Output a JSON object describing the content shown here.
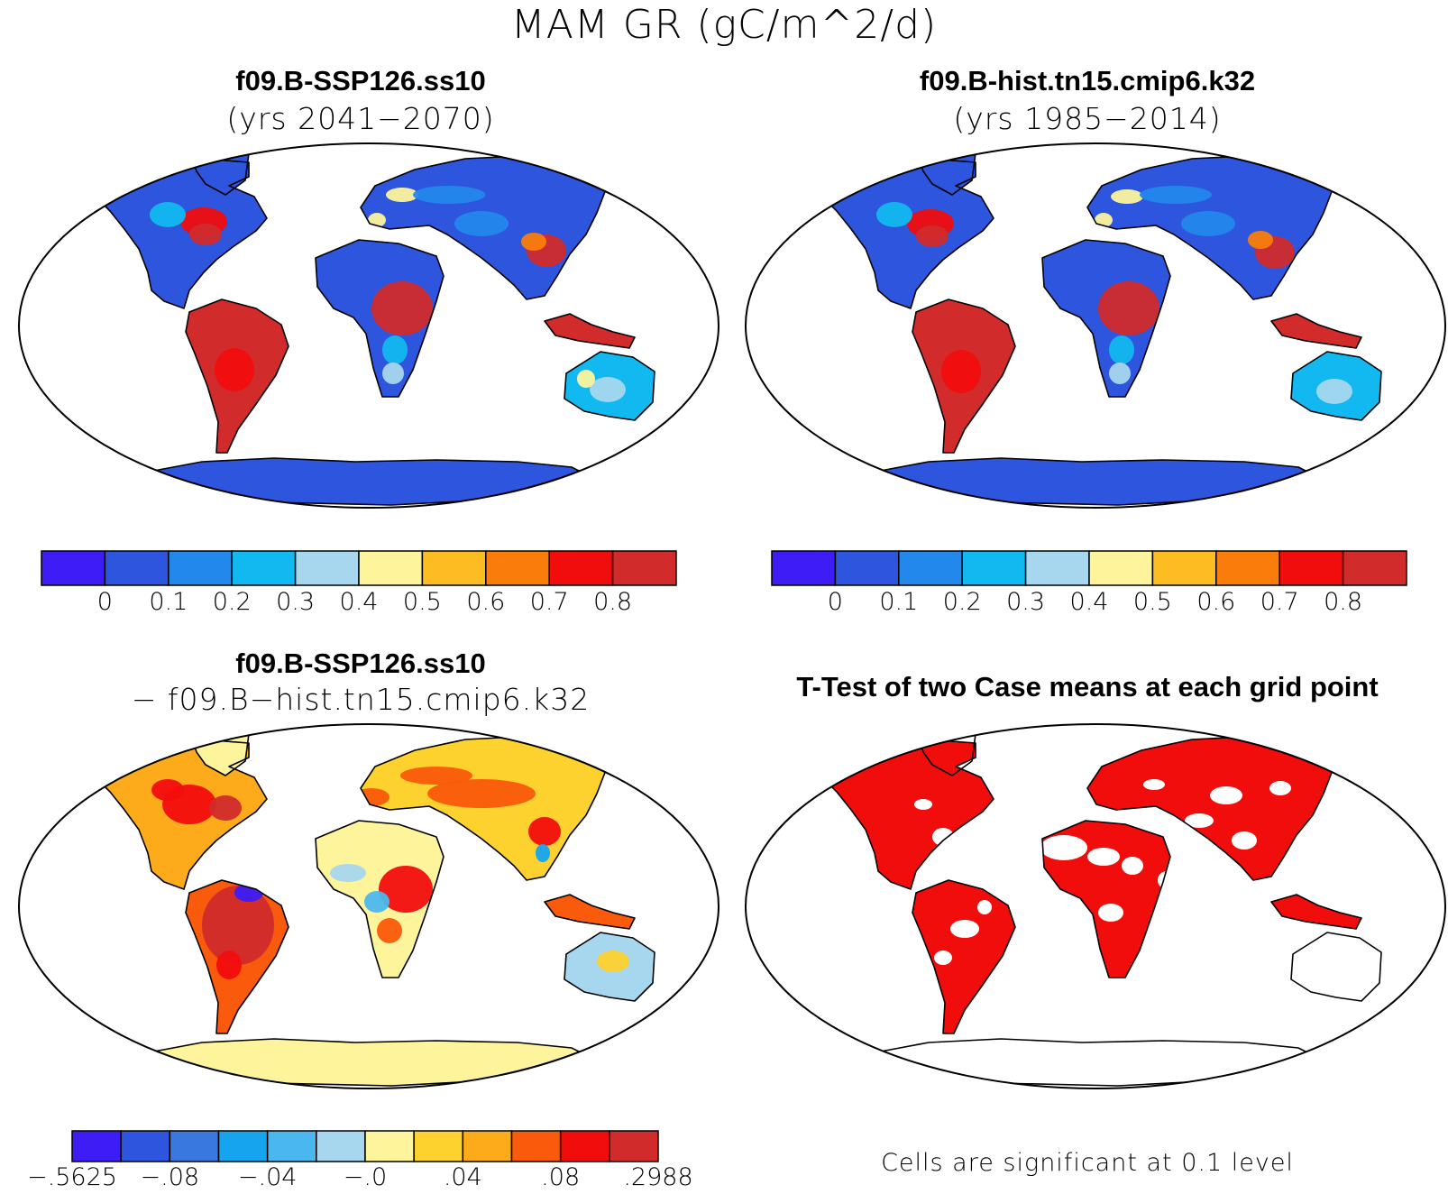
{
  "title": "MAM GR (gC/m^2/d)",
  "panels": [
    {
      "id": "ssp",
      "title": "f09.B-SSP126.ss10",
      "subtitle": "(yrs 2041−2070)",
      "kind": "field"
    },
    {
      "id": "hist",
      "title": "f09.B-hist.tn15.cmip6.k32",
      "subtitle": "(yrs 1985−2014)",
      "kind": "field"
    },
    {
      "id": "diff",
      "title": "f09.B-SSP126.ss10",
      "subtitle": "− f09.B−hist.tn15.cmip6.k32",
      "kind": "difference"
    },
    {
      "id": "ttest",
      "title": "T-Test of two Case means at each grid point",
      "subtitle": "",
      "kind": "significance"
    }
  ],
  "colorbar_field": {
    "colors": [
      "#3d1cf5",
      "#2e55dd",
      "#2388ec",
      "#12b8f0",
      "#a6d7ee",
      "#fdf49c",
      "#fdbd22",
      "#fa7d0c",
      "#f20d0d",
      "#d12b2b"
    ],
    "labels": [
      "0",
      "0.1",
      "0.2",
      "0.3",
      "0.4",
      "0.5",
      "0.6",
      "0.7",
      "0.8"
    ]
  },
  "colorbar_diff": {
    "colors": [
      "#3d1cf5",
      "#2e55dd",
      "#3978de",
      "#16a4ef",
      "#4ab8ee",
      "#a6d7ee",
      "#fdf49c",
      "#fdd22e",
      "#fdab1a",
      "#fa5a0b",
      "#f20d0d",
      "#d12b2b"
    ],
    "labels": [
      "−.5625",
      "−.08",
      "−.04",
      "−.0",
      ".04",
      ".08",
      ".2988"
    ]
  },
  "significance": {
    "color": "#f20d0d",
    "note": "Cells are significant at 0.1 level"
  }
}
